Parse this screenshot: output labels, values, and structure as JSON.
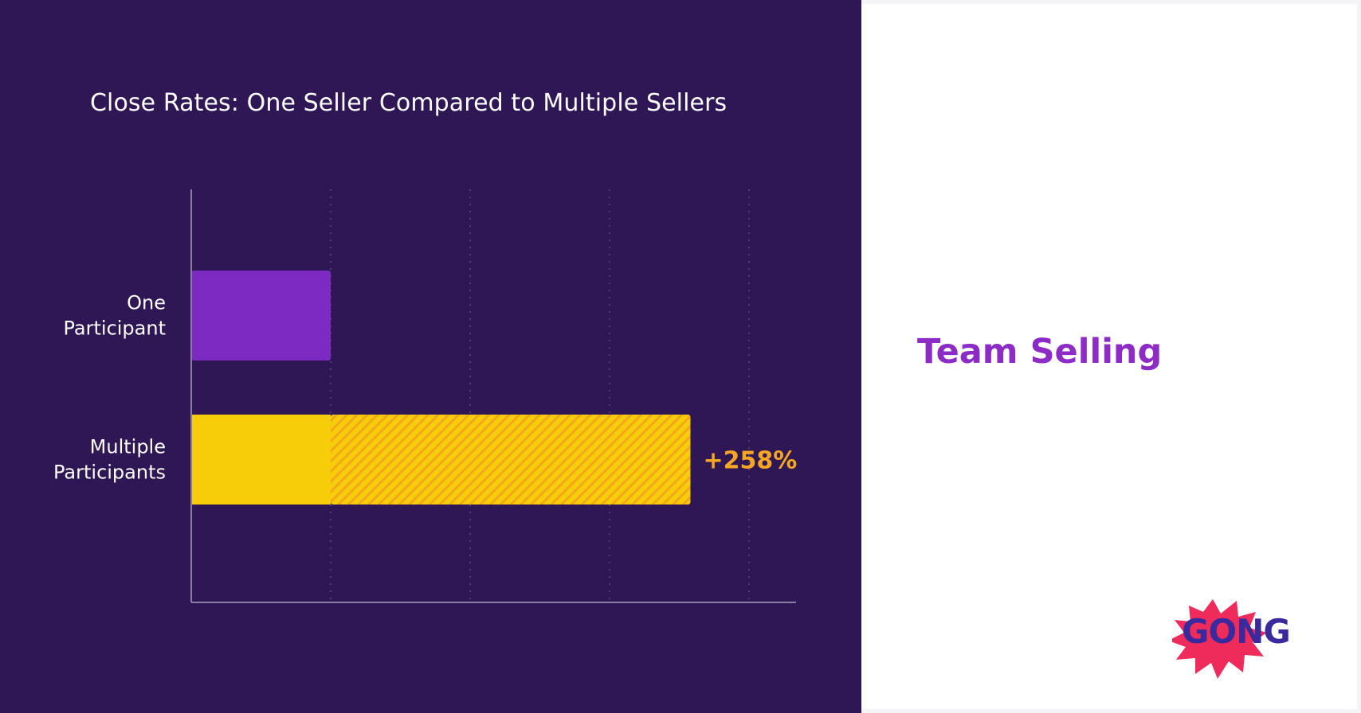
{
  "colors": {
    "background": "#2f1654",
    "one_participant_bar": "#7d2ac2",
    "multiple_participants_bar": "#f7cd0a",
    "hatch_stripe": "#f3a81c",
    "delta_label": "#f5a623",
    "axis": "#8a7fa3",
    "gridline": "#5b4a7e",
    "side_title": "#8c2bc6",
    "logo_burst": "#ef2b5b",
    "logo_text": "#3a2a9e"
  },
  "chart_data": {
    "type": "bar",
    "orientation": "horizontal",
    "title": "Close Rates: One Seller Compared to Multiple Sellers",
    "categories": [
      [
        "One",
        "Participant"
      ],
      [
        "Multiple",
        "Participants"
      ]
    ],
    "values": [
      1,
      3.58
    ],
    "annotations": [
      "",
      "+258%"
    ],
    "xlim": [
      0,
      4.3
    ],
    "gridlines": [
      1,
      2,
      3,
      4
    ],
    "grid": "vertical dotted"
  },
  "side_title": "Team Selling",
  "logo": {
    "text": "GONG",
    "icon": "starburst-icon"
  }
}
